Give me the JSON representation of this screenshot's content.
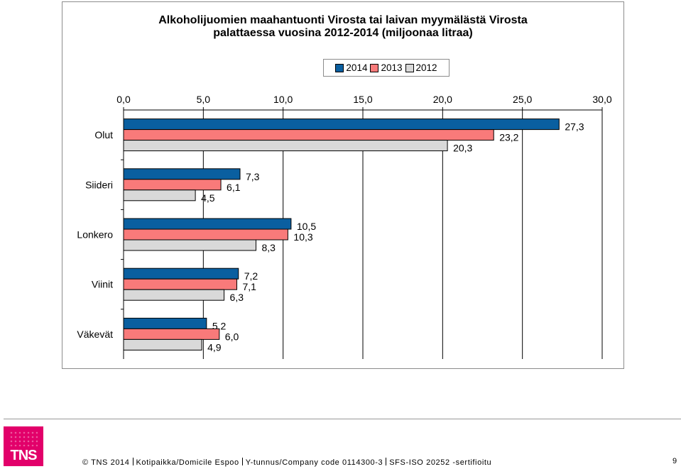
{
  "chart_data": {
    "type": "bar",
    "orientation": "horizontal",
    "title": "Alkoholijuomien maahantuonti Virosta tai laivan myymälästä Virosta palattaessa vuosina 2012-2014 (miljoonaa litraa)",
    "title_lines": [
      "Alkoholijuomien maahantuonti Virosta tai laivan myymälästä Virosta",
      "palattaessa vuosina 2012-2014 (miljoonaa litraa)"
    ],
    "categories": [
      "Olut",
      "Siideri",
      "Lonkero",
      "Viinit",
      "Väkevät"
    ],
    "series": [
      {
        "name": "2014",
        "values": [
          27.3,
          7.3,
          10.5,
          7.2,
          5.2
        ],
        "labels": [
          "27,3",
          "7,3",
          "10,5",
          "7,2",
          "5,2"
        ],
        "color": "#0a5fa0"
      },
      {
        "name": "2013",
        "values": [
          23.2,
          6.1,
          10.3,
          7.1,
          6.0
        ],
        "labels": [
          "23,2",
          "6,1",
          "10,3",
          "7,1",
          "6,0"
        ],
        "color": "#f97a7a"
      },
      {
        "name": "2012",
        "values": [
          20.3,
          4.5,
          8.3,
          6.3,
          4.9
        ],
        "labels": [
          "20,3",
          "4,5",
          "8,3",
          "6,3",
          "4,9"
        ],
        "color": "#d9d9d9"
      }
    ],
    "xlim": [
      0,
      30
    ],
    "xticks": [
      "0,0",
      "5,0",
      "10,0",
      "15,0",
      "20,0",
      "25,0",
      "30,0"
    ],
    "xaxis_position": "top",
    "grid": true,
    "legend": [
      "2014",
      "2013",
      "2012"
    ],
    "legend_position": "top"
  },
  "footer": {
    "logo": "TNS",
    "copyright": "© TNS 2014",
    "address": "Kotipaikka/Domicile Espoo",
    "company_code": "Y-tunnus/Company code 0114300-3",
    "certification": "SFS-ISO 20252 -sertifioitu",
    "page_number": "9"
  }
}
